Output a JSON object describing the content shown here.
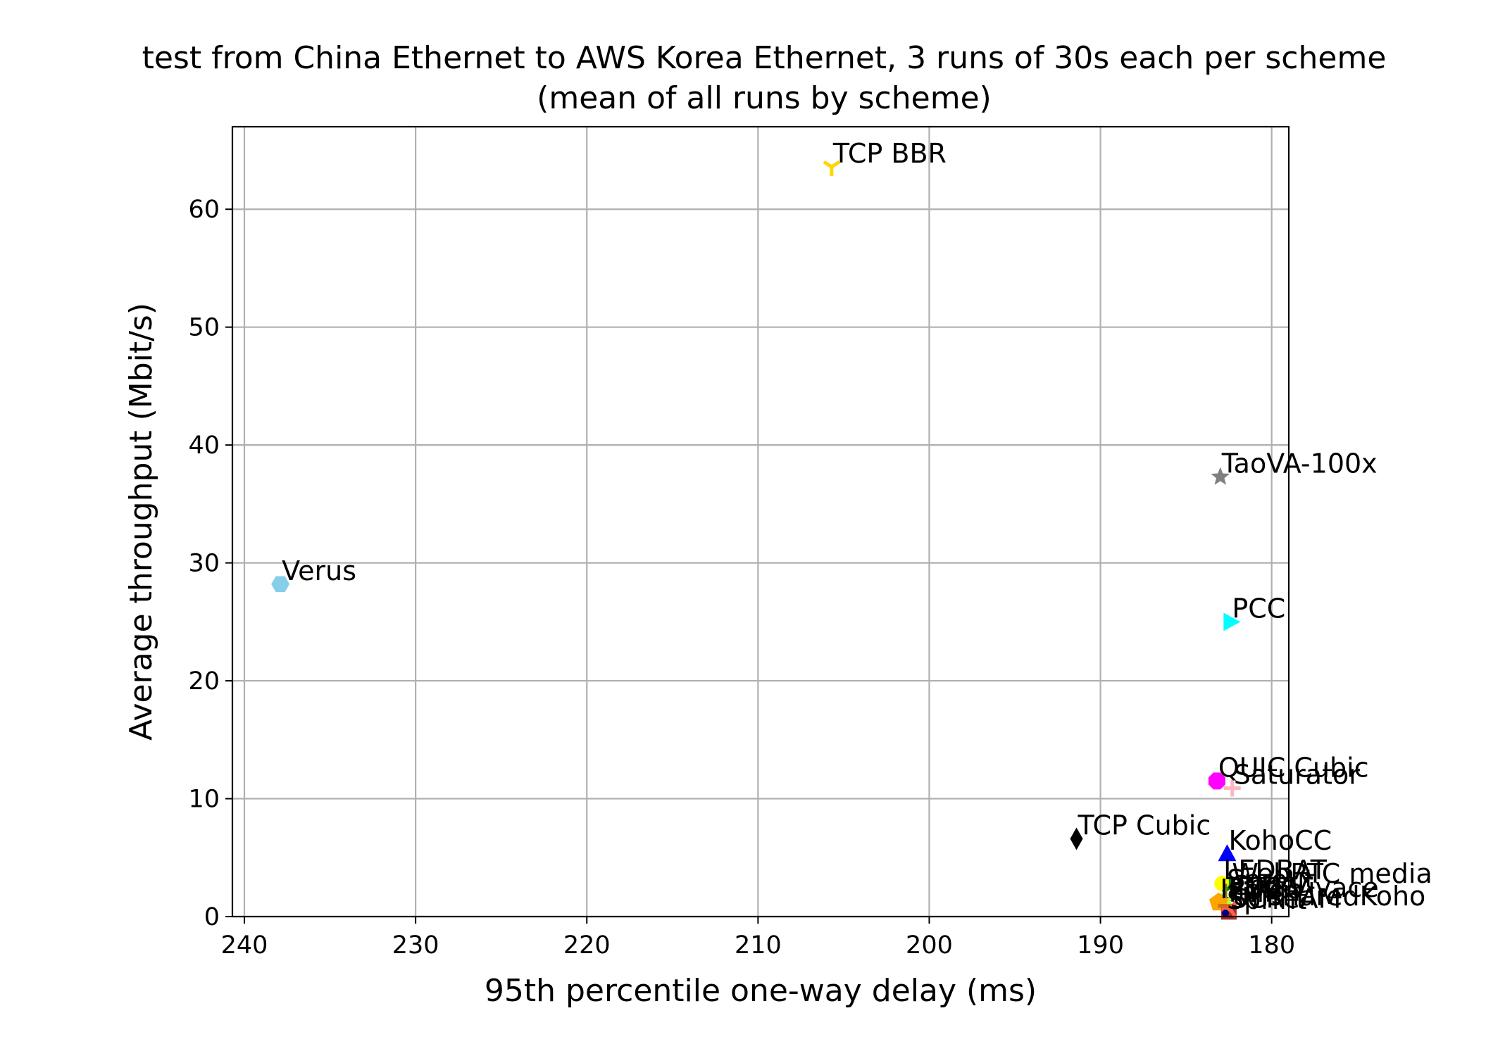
{
  "chart_data": {
    "type": "scatter",
    "title": "test from China Ethernet to AWS Korea Ethernet, 3 runs of 30s each per scheme",
    "subtitle": "(mean of all runs by scheme)",
    "xlabel": "95th percentile one-way delay (ms)",
    "ylabel": "Average throughput (Mbit/s)",
    "xlim": [
      240.7,
      179.0
    ],
    "ylim": [
      0,
      67
    ],
    "x_inverted": true,
    "grid": true,
    "x_ticks": [
      240,
      230,
      220,
      210,
      200,
      190,
      180
    ],
    "y_ticks": [
      0,
      10,
      20,
      30,
      40,
      50,
      60
    ],
    "points": [
      {
        "label": "TCP BBR",
        "x": 205.7,
        "y": 63.6,
        "color": "#FFD700",
        "marker": "tri_down"
      },
      {
        "label": "TaoVA-100x",
        "x": 183.0,
        "y": 37.3,
        "color": "#808080",
        "marker": "star"
      },
      {
        "label": "Verus",
        "x": 237.9,
        "y": 28.2,
        "color": "#87CEEB",
        "marker": "hexagon"
      },
      {
        "label": "PCC",
        "x": 182.4,
        "y": 25.0,
        "color": "#00FFFF",
        "marker": "triangle_right"
      },
      {
        "label": "QUIC Cubic",
        "x": 183.2,
        "y": 11.5,
        "color": "#FF00FF",
        "marker": "octagon"
      },
      {
        "label": "Saturator",
        "x": 182.3,
        "y": 10.9,
        "color": "#FFB6C1",
        "marker": "plus"
      },
      {
        "label": "TCP Cubic",
        "x": 191.4,
        "y": 6.6,
        "color": "#000000",
        "marker": "thin_diamond"
      },
      {
        "label": "KohoCC",
        "x": 182.6,
        "y": 5.3,
        "color": "#0000FF",
        "marker": "triangle_up"
      },
      {
        "label": "LEDBAT",
        "x": 182.9,
        "y": 2.8,
        "color": "#FFFF00",
        "marker": "circle"
      },
      {
        "label": "WebRTC media",
        "x": 182.4,
        "y": 2.5,
        "color": "#008000",
        "marker": "tri_up"
      },
      {
        "label": "Sprout",
        "x": 182.7,
        "y": 2.0,
        "color": "#808000",
        "marker": "vline"
      },
      {
        "label": "Copa",
        "x": 182.5,
        "y": 1.5,
        "color": "#A0522D",
        "marker": "pixel"
      },
      {
        "label": "PCC-Vivace",
        "x": 182.6,
        "y": 1.3,
        "color": "#ADFF2F",
        "marker": "x"
      },
      {
        "label": "Indigo",
        "x": 183.1,
        "y": 1.2,
        "color": "#FFA500",
        "marker": "pentagon"
      },
      {
        "label": "SCReAM",
        "x": 182.5,
        "y": 0.4,
        "color": "#A52A2A",
        "marker": "square"
      },
      {
        "label": "FillP",
        "x": 182.6,
        "y": 0.9,
        "color": "#D2691E",
        "marker": "hline"
      },
      {
        "label": "UnsharedKoho",
        "x": 182.4,
        "y": 0.6,
        "color": "#FF6347",
        "marker": "tri_left"
      },
      {
        "label": "Sprint",
        "x": 182.7,
        "y": 0.3,
        "color": "#000080",
        "marker": "point"
      }
    ]
  }
}
